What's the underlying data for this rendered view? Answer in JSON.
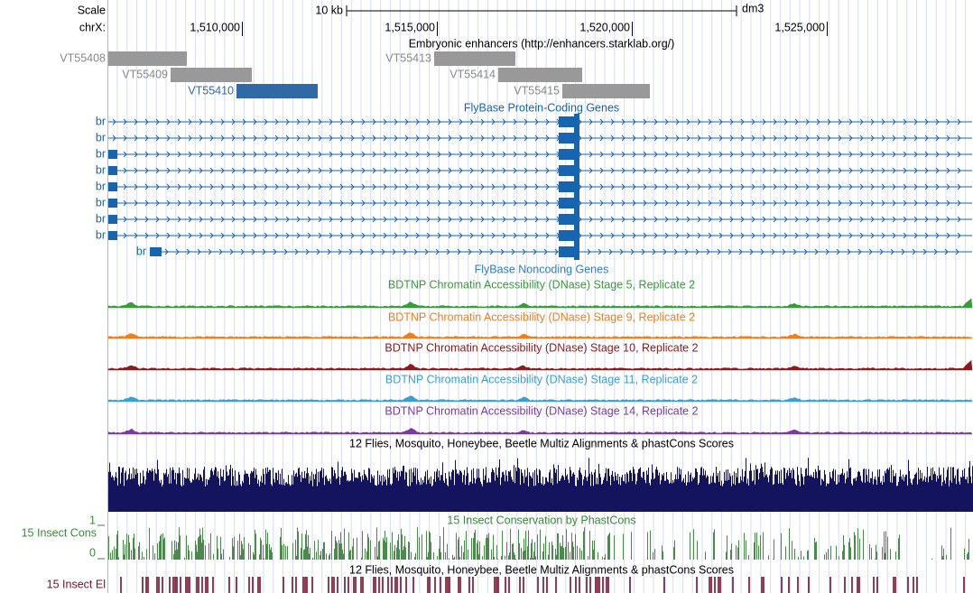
{
  "header": {
    "scale_label": "Scale",
    "chrom_label": "chrX:",
    "scale_bar_label": "10 kb",
    "assembly": "dm3",
    "positions": [
      "1,510,000",
      "1,515,000",
      "1,520,000",
      "1,525,000"
    ]
  },
  "enhancers": {
    "title": "Embryonic enhancers (http://enhancers.starklab.org/)",
    "items": [
      "VT55408",
      "VT55409",
      "VT55410",
      "VT55413",
      "VT55414",
      "VT55415"
    ]
  },
  "genes": {
    "title": "FlyBase Protein-Coding Genes",
    "labels": [
      "br",
      "br",
      "br",
      "br",
      "br",
      "br",
      "br",
      "br",
      "br"
    ]
  },
  "noncoding": {
    "title": "FlyBase Noncoding Genes"
  },
  "dnase": {
    "titles": [
      "BDTNP Chromatin Accessibility (DNase) Stage 5, Replicate 2",
      "BDTNP Chromatin Accessibility (DNase) Stage 9, Replicate 2",
      "BDTNP Chromatin Accessibility (DNase) Stage 10, Replicate 2",
      "BDTNP Chromatin Accessibility (DNase) Stage 11, Replicate 2",
      "BDTNP Chromatin Accessibility (DNase) Stage 14, Replicate 2"
    ]
  },
  "multiz": {
    "title": "12 Flies, Mosquito, Honeybee, Beetle Multiz Alignments & phastCons Scores"
  },
  "conservation": {
    "title": "15 Insect Conservation by PhastCons",
    "side_label": "15 Insect Cons",
    "axis_max": 1,
    "axis_min": 0
  },
  "elements": {
    "title": "12 Flies, Mosquito, Honeybee, Beetle Multiz Alignments & phastCons Scores",
    "side_label": "15 Insect El"
  }
}
